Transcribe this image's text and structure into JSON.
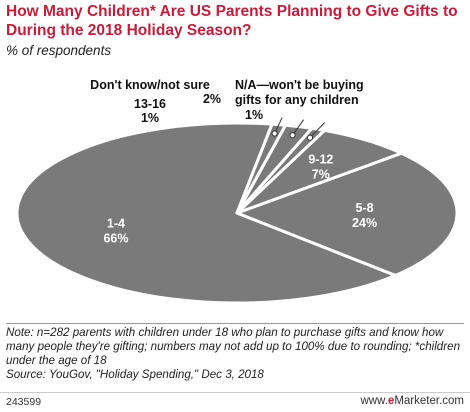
{
  "title": "How Many Children* Are US Parents Planning to Give Gifts to During the 2018 Holiday Season?",
  "subtitle": "% of respondents",
  "chart_data": {
    "type": "pie",
    "title": "How Many Children* Are US Parents Planning to Give Gifts to During the 2018 Holiday Season?",
    "subtitle": "% of respondents",
    "unit": "%",
    "slices": [
      {
        "label": "1-4",
        "value": 66,
        "value_label": "66%"
      },
      {
        "label": "5-8",
        "value": 24,
        "value_label": "24%"
      },
      {
        "label": "9-12",
        "value": 7,
        "value_label": "7%"
      },
      {
        "label": "13-16",
        "value": 1,
        "value_label": "1%"
      },
      {
        "label": "Don't know/not sure",
        "value": 2,
        "value_label": "2%"
      },
      {
        "label": "N/A—won't be buying gifts for any children",
        "value": 1,
        "value_label": "1%"
      }
    ],
    "colors": {
      "slice": "#7a7a7a",
      "border": "#ffffff",
      "inside_label": "#ffffff",
      "outside_label": "#111111",
      "title": "#cc1a3a"
    }
  },
  "note": "Note: n=282 parents with children under 18 who plan to purchase gifts and know how many people they're gifting; numbers may not add up to 100% due to rounding; *children under the age of 18",
  "source": "Source: YouGov, \"Holiday Spending,\" Dec 3, 2018",
  "chart_id": "243599",
  "logo": {
    "prefix": "www.",
    "brand_e": "e",
    "brand_rest": "Marketer",
    "suffix": ".com"
  }
}
